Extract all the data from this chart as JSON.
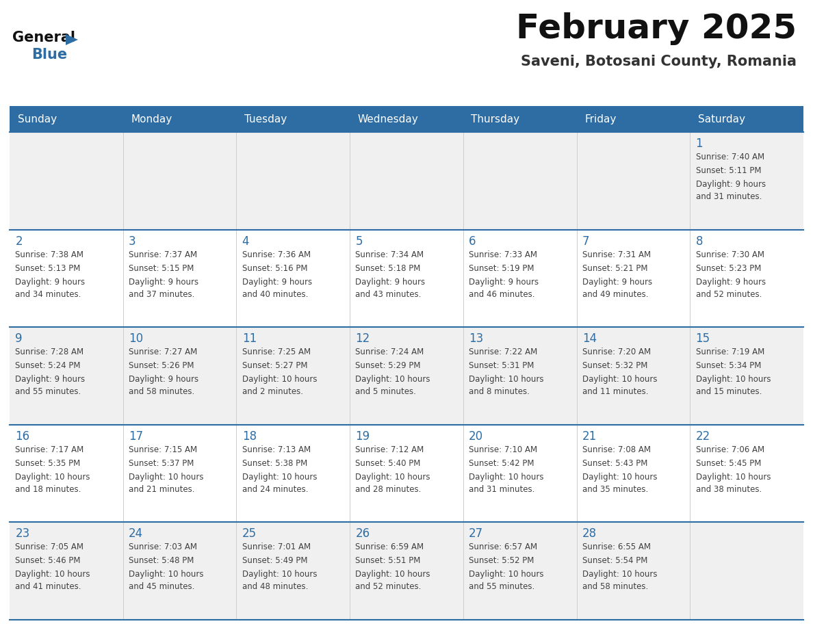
{
  "title": "February 2025",
  "subtitle": "Saveni, Botosani County, Romania",
  "header_bg": "#2e6da4",
  "header_text_color": "#ffffff",
  "cell_bg_light": "#f0f0f0",
  "cell_bg_white": "#ffffff",
  "day_number_color": "#2e6da4",
  "cell_text_color": "#404040",
  "grid_line_color": "#2e6da4",
  "days_of_week": [
    "Sunday",
    "Monday",
    "Tuesday",
    "Wednesday",
    "Thursday",
    "Friday",
    "Saturday"
  ],
  "weeks": [
    [
      {
        "day": null,
        "sunrise": null,
        "sunset": null,
        "daylight": null
      },
      {
        "day": null,
        "sunrise": null,
        "sunset": null,
        "daylight": null
      },
      {
        "day": null,
        "sunrise": null,
        "sunset": null,
        "daylight": null
      },
      {
        "day": null,
        "sunrise": null,
        "sunset": null,
        "daylight": null
      },
      {
        "day": null,
        "sunrise": null,
        "sunset": null,
        "daylight": null
      },
      {
        "day": null,
        "sunrise": null,
        "sunset": null,
        "daylight": null
      },
      {
        "day": 1,
        "sunrise": "7:40 AM",
        "sunset": "5:11 PM",
        "daylight": "9 hours\nand 31 minutes."
      }
    ],
    [
      {
        "day": 2,
        "sunrise": "7:38 AM",
        "sunset": "5:13 PM",
        "daylight": "9 hours\nand 34 minutes."
      },
      {
        "day": 3,
        "sunrise": "7:37 AM",
        "sunset": "5:15 PM",
        "daylight": "9 hours\nand 37 minutes."
      },
      {
        "day": 4,
        "sunrise": "7:36 AM",
        "sunset": "5:16 PM",
        "daylight": "9 hours\nand 40 minutes."
      },
      {
        "day": 5,
        "sunrise": "7:34 AM",
        "sunset": "5:18 PM",
        "daylight": "9 hours\nand 43 minutes."
      },
      {
        "day": 6,
        "sunrise": "7:33 AM",
        "sunset": "5:19 PM",
        "daylight": "9 hours\nand 46 minutes."
      },
      {
        "day": 7,
        "sunrise": "7:31 AM",
        "sunset": "5:21 PM",
        "daylight": "9 hours\nand 49 minutes."
      },
      {
        "day": 8,
        "sunrise": "7:30 AM",
        "sunset": "5:23 PM",
        "daylight": "9 hours\nand 52 minutes."
      }
    ],
    [
      {
        "day": 9,
        "sunrise": "7:28 AM",
        "sunset": "5:24 PM",
        "daylight": "9 hours\nand 55 minutes."
      },
      {
        "day": 10,
        "sunrise": "7:27 AM",
        "sunset": "5:26 PM",
        "daylight": "9 hours\nand 58 minutes."
      },
      {
        "day": 11,
        "sunrise": "7:25 AM",
        "sunset": "5:27 PM",
        "daylight": "10 hours\nand 2 minutes."
      },
      {
        "day": 12,
        "sunrise": "7:24 AM",
        "sunset": "5:29 PM",
        "daylight": "10 hours\nand 5 minutes."
      },
      {
        "day": 13,
        "sunrise": "7:22 AM",
        "sunset": "5:31 PM",
        "daylight": "10 hours\nand 8 minutes."
      },
      {
        "day": 14,
        "sunrise": "7:20 AM",
        "sunset": "5:32 PM",
        "daylight": "10 hours\nand 11 minutes."
      },
      {
        "day": 15,
        "sunrise": "7:19 AM",
        "sunset": "5:34 PM",
        "daylight": "10 hours\nand 15 minutes."
      }
    ],
    [
      {
        "day": 16,
        "sunrise": "7:17 AM",
        "sunset": "5:35 PM",
        "daylight": "10 hours\nand 18 minutes."
      },
      {
        "day": 17,
        "sunrise": "7:15 AM",
        "sunset": "5:37 PM",
        "daylight": "10 hours\nand 21 minutes."
      },
      {
        "day": 18,
        "sunrise": "7:13 AM",
        "sunset": "5:38 PM",
        "daylight": "10 hours\nand 24 minutes."
      },
      {
        "day": 19,
        "sunrise": "7:12 AM",
        "sunset": "5:40 PM",
        "daylight": "10 hours\nand 28 minutes."
      },
      {
        "day": 20,
        "sunrise": "7:10 AM",
        "sunset": "5:42 PM",
        "daylight": "10 hours\nand 31 minutes."
      },
      {
        "day": 21,
        "sunrise": "7:08 AM",
        "sunset": "5:43 PM",
        "daylight": "10 hours\nand 35 minutes."
      },
      {
        "day": 22,
        "sunrise": "7:06 AM",
        "sunset": "5:45 PM",
        "daylight": "10 hours\nand 38 minutes."
      }
    ],
    [
      {
        "day": 23,
        "sunrise": "7:05 AM",
        "sunset": "5:46 PM",
        "daylight": "10 hours\nand 41 minutes."
      },
      {
        "day": 24,
        "sunrise": "7:03 AM",
        "sunset": "5:48 PM",
        "daylight": "10 hours\nand 45 minutes."
      },
      {
        "day": 25,
        "sunrise": "7:01 AM",
        "sunset": "5:49 PM",
        "daylight": "10 hours\nand 48 minutes."
      },
      {
        "day": 26,
        "sunrise": "6:59 AM",
        "sunset": "5:51 PM",
        "daylight": "10 hours\nand 52 minutes."
      },
      {
        "day": 27,
        "sunrise": "6:57 AM",
        "sunset": "5:52 PM",
        "daylight": "10 hours\nand 55 minutes."
      },
      {
        "day": 28,
        "sunrise": "6:55 AM",
        "sunset": "5:54 PM",
        "daylight": "10 hours\nand 58 minutes."
      },
      {
        "day": null,
        "sunrise": null,
        "sunset": null,
        "daylight": null
      }
    ]
  ]
}
